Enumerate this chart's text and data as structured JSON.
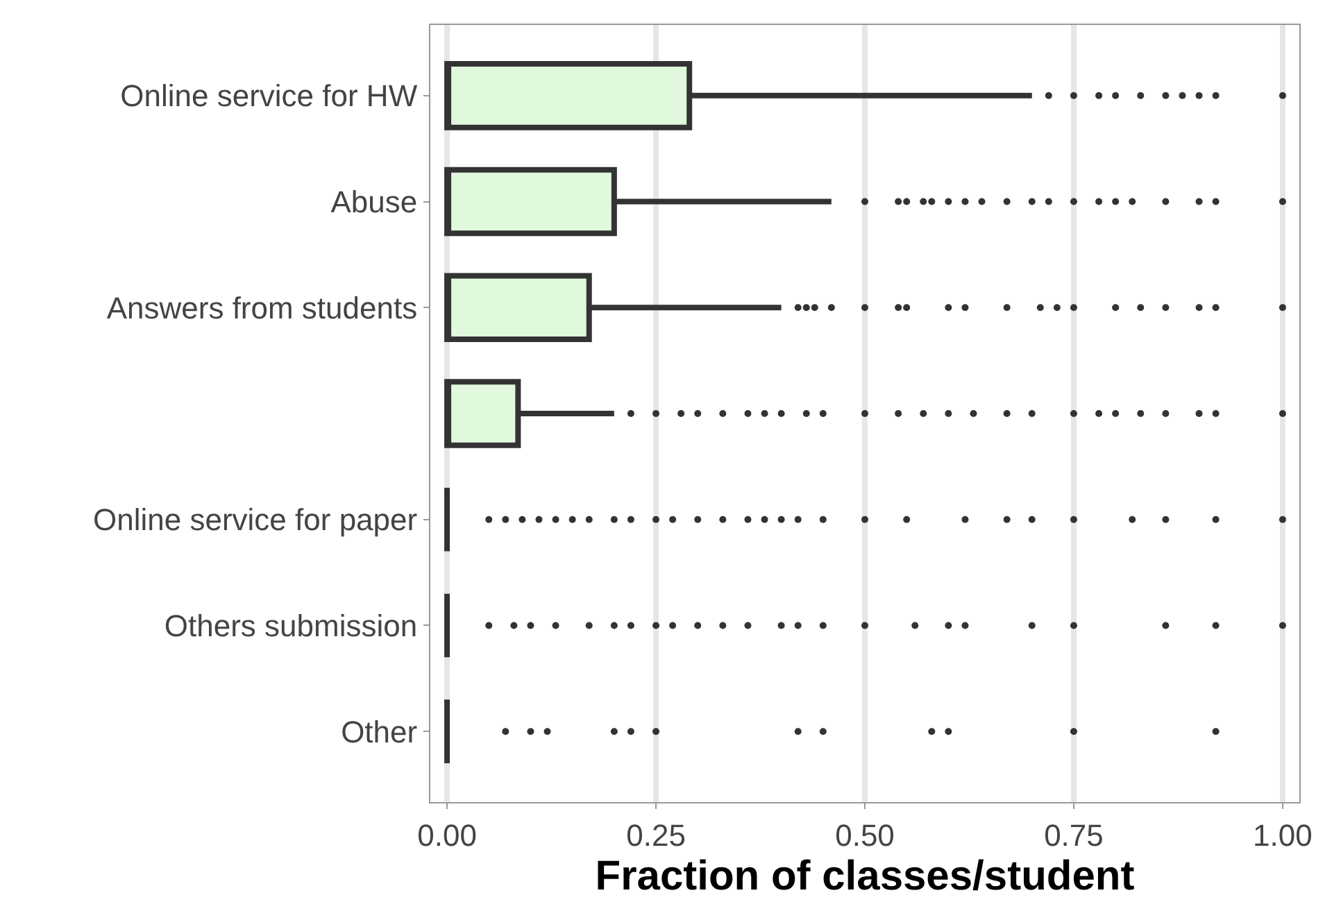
{
  "chart_data": {
    "type": "box",
    "orientation": "horizontal",
    "xlabel": "Fraction of classes/student",
    "categories": [
      "Online service for HW",
      "Abuse",
      "Answers from students",
      null,
      "Online service for paper",
      "Others submission",
      "Other"
    ],
    "xlim": [
      -0.02,
      1.02
    ],
    "xticks": [
      {
        "value": 0,
        "label": "0.00"
      },
      0.25,
      {
        "value": 0.5,
        "label": "0.50"
      },
      0.75,
      {
        "value": 1,
        "label": "1.00"
      }
    ],
    "grid": "x",
    "series": [
      {
        "color": "#e0f8dc",
        "boxes": [
          {
            "low": 0,
            "q1": 0,
            "median": 0,
            "q3": 0.29,
            "high": 0.7,
            "outliers": [
              0.72,
              0.75,
              0.78,
              0.8,
              0.83,
              0.86,
              0.88,
              0.9,
              0.92,
              1.0
            ]
          },
          {
            "low": 0,
            "q1": 0,
            "median": 0,
            "q3": 0.2,
            "high": 0.46,
            "outliers": [
              0.5,
              0.54,
              0.55,
              0.57,
              0.58,
              0.6,
              0.62,
              0.64,
              0.67,
              0.7,
              0.72,
              0.75,
              0.78,
              0.8,
              0.82,
              0.86,
              0.9,
              0.92,
              1.0
            ]
          },
          {
            "low": 0,
            "q1": 0,
            "median": 0,
            "q3": 0.17,
            "high": 0.4,
            "outliers": [
              0.42,
              0.43,
              0.44,
              0.46,
              0.5,
              0.54,
              0.55,
              0.6,
              0.62,
              0.67,
              0.71,
              0.73,
              0.75,
              0.8,
              0.83,
              0.86,
              0.9,
              0.92,
              1.0
            ]
          },
          {
            "low": 0,
            "q1": 0,
            "median": 0,
            "q3": 0.085,
            "high": 0.2,
            "outliers": [
              0.22,
              0.25,
              0.28,
              0.3,
              0.33,
              0.36,
              0.38,
              0.4,
              0.43,
              0.45,
              0.5,
              0.54,
              0.57,
              0.6,
              0.63,
              0.67,
              0.7,
              0.75,
              0.78,
              0.8,
              0.83,
              0.86,
              0.9,
              0.92,
              1.0
            ]
          },
          null,
          null,
          null
        ]
      },
      {
        "color": "#333333",
        "boxes": [
          null,
          null,
          null,
          null,
          {
            "low": 0,
            "q1": 0,
            "median": 0,
            "q3": 0,
            "high": 0,
            "outliers": [
              0.05,
              0.07,
              0.09,
              0.11,
              0.13,
              0.15,
              0.17,
              0.2,
              0.22,
              0.25,
              0.27,
              0.3,
              0.33,
              0.36,
              0.38,
              0.4,
              0.42,
              0.45,
              0.5,
              0.55,
              0.62,
              0.67,
              0.7,
              0.75,
              0.82,
              0.86,
              0.92,
              1.0
            ]
          },
          {
            "low": 0,
            "q1": 0,
            "median": 0,
            "q3": 0,
            "high": 0,
            "outliers": [
              0.05,
              0.08,
              0.1,
              0.13,
              0.17,
              0.2,
              0.22,
              0.25,
              0.27,
              0.3,
              0.33,
              0.36,
              0.4,
              0.42,
              0.45,
              0.5,
              0.56,
              0.6,
              0.62,
              0.7,
              0.75,
              0.86,
              0.92,
              1.0
            ]
          },
          {
            "low": 0,
            "q1": 0,
            "median": 0,
            "q3": 0,
            "high": 0,
            "outliers": [
              0.07,
              0.1,
              0.12,
              0.2,
              0.22,
              0.25,
              0.42,
              0.45,
              0.58,
              0.6,
              0.75,
              0.92
            ]
          }
        ]
      }
    ]
  }
}
